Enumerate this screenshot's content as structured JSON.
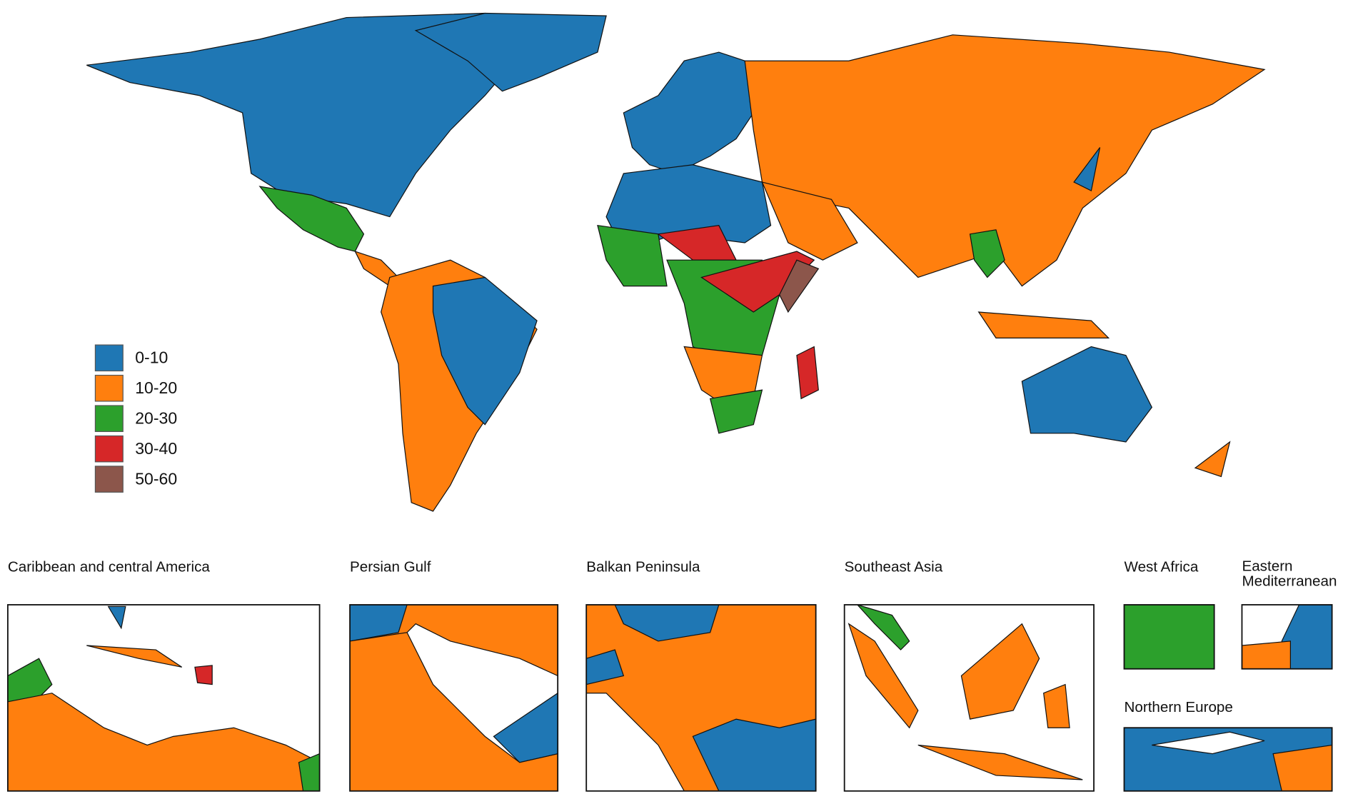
{
  "legend": {
    "items": [
      {
        "label": "0-10",
        "color": "#1f77b4"
      },
      {
        "label": "10-20",
        "color": "#ff7f0e"
      },
      {
        "label": "20-30",
        "color": "#2ca02c"
      },
      {
        "label": "30-40",
        "color": "#d62728"
      },
      {
        "label": "50-60",
        "color": "#8c564b"
      }
    ]
  },
  "insets": [
    {
      "title": "Caribbean and central America"
    },
    {
      "title": "Persian Gulf"
    },
    {
      "title": "Balkan Peninsula"
    },
    {
      "title": "Southeast Asia"
    },
    {
      "title": "West Africa"
    },
    {
      "title": "Eastern Mediterranean"
    },
    {
      "title": "Northern Europe"
    }
  ]
}
